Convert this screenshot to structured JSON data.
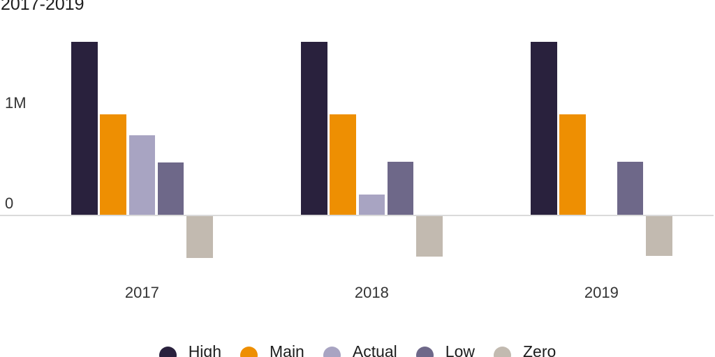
{
  "chart_data": {
    "type": "bar",
    "title": "2017-2019",
    "categories": [
      "2017",
      "2018",
      "2019"
    ],
    "series": [
      {
        "name": "High",
        "color": "#29213d",
        "values": [
          1.72,
          1.72,
          1.72
        ]
      },
      {
        "name": "Main",
        "color": "#ee8f02",
        "values": [
          1.0,
          1.0,
          1.0
        ]
      },
      {
        "name": "Actual",
        "color": "#a8a4c2",
        "values": [
          0.79,
          0.2,
          null
        ]
      },
      {
        "name": "Low",
        "color": "#6e6889",
        "values": [
          0.52,
          0.53,
          0.53
        ]
      },
      {
        "name": "Zero",
        "color": "#c2bab0",
        "values": [
          -0.43,
          -0.42,
          -0.41
        ]
      }
    ],
    "unit": "M",
    "xlabel": "",
    "ylabel": "",
    "ylim": [
      -0.5,
      1.75
    ],
    "y_ticks": [
      {
        "label": "1M",
        "value": 1
      },
      {
        "label": "0",
        "value": 0
      }
    ],
    "grid": false,
    "legend_position": "bottom",
    "axis_line_color": "#dadada",
    "background_color": "#ffffff"
  }
}
